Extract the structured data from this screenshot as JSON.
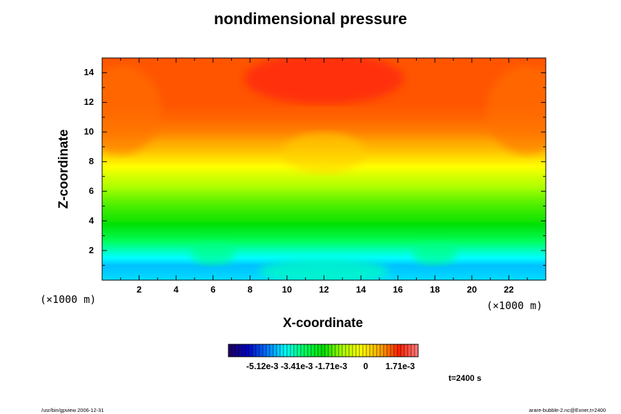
{
  "chart_data": {
    "type": "heatmap",
    "title": "nondimensional pressure",
    "xlabel": "X-coordinate",
    "ylabel": "Z-coordinate",
    "x_unit": "(×1000 m)",
    "y_unit": "(×1000 m)",
    "xlim": [
      0,
      24
    ],
    "ylim": [
      0,
      15
    ],
    "xticks": [
      2,
      4,
      6,
      8,
      10,
      12,
      14,
      16,
      18,
      20,
      22
    ],
    "yticks": [
      2,
      4,
      6,
      8,
      10,
      12,
      14
    ],
    "field_profile": {
      "z": [
        0,
        1,
        2,
        3,
        4,
        5,
        6,
        7,
        8,
        9,
        10,
        11,
        12,
        13,
        14,
        15
      ],
      "value": [
        -0.0042,
        -0.0044,
        -0.0036,
        -0.0027,
        -0.002,
        -0.0017,
        -0.0013,
        -0.0007,
        0.0,
        0.0006,
        0.001,
        0.0012,
        0.0013,
        0.0013,
        0.0013,
        0.0013
      ]
    },
    "colorbar": {
      "range": [
        -0.0068,
        0.0026
      ],
      "labels": [
        "-5.12e-3",
        "-3.41e-3",
        "-1.71e-3",
        "0",
        "1.71e-3"
      ],
      "label_values": [
        -0.00512,
        -0.00341,
        -0.00171,
        0,
        0.00171
      ],
      "colors": [
        "#200060",
        "#0000c0",
        "#0070ff",
        "#00ffff",
        "#00ff60",
        "#00e000",
        "#aaff00",
        "#ffff00",
        "#ffaa00",
        "#ff2000",
        "#ff8080"
      ]
    },
    "time_label": "t=2400 s"
  },
  "footer": {
    "left": "/usr/bin/gpview 2006-12-31",
    "right": "arare-bubble-2.nc@Exner,t=2400"
  }
}
